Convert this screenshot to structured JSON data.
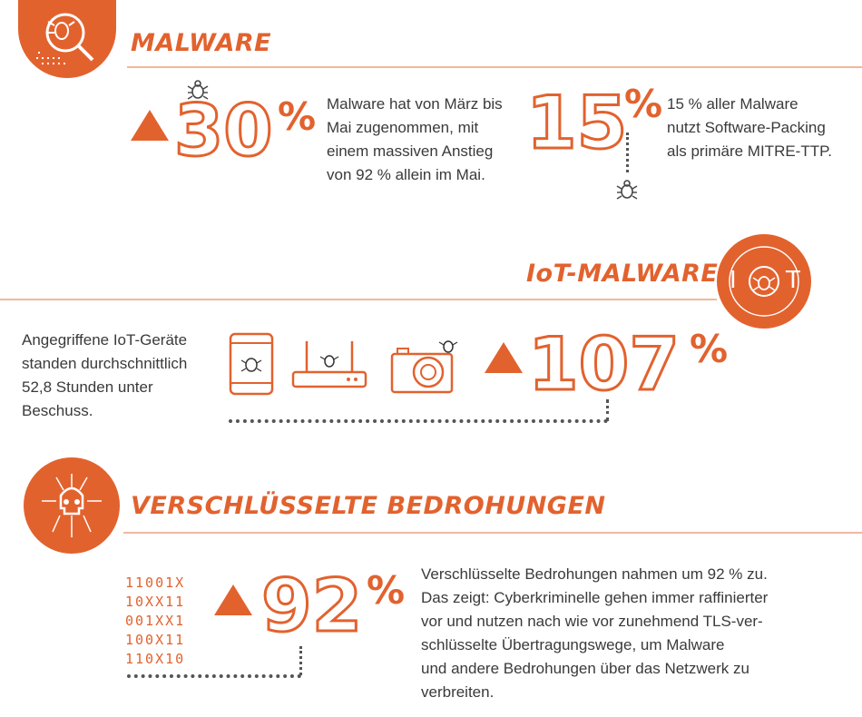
{
  "colors": {
    "accent": "#e2622e",
    "text": "#3a3a3a",
    "rule": "#f0b89e"
  },
  "malware": {
    "heading": "MALWARE",
    "stat1": {
      "number": "30",
      "percent": "%",
      "text_lines": [
        "Malware hat von März bis",
        "Mai zugenommen, mit",
        "einem massiven Anstieg",
        "von 92 % allein im Mai."
      ]
    },
    "stat2": {
      "number": "15",
      "percent": "%",
      "text_lines": [
        "15 % aller Malware",
        "nutzt Software-Packing",
        "als primäre MITRE-TTP."
      ]
    }
  },
  "iot": {
    "heading": "IoT-MALWARE",
    "badge_letters": [
      "I",
      "T"
    ],
    "text_lines": [
      "Angegriffene IoT-Geräte",
      "standen durchschnittlich",
      "52,8 Stunden unter",
      "Beschuss."
    ],
    "number": "107",
    "percent": "%"
  },
  "encrypted": {
    "heading": "VERSCHLÜSSELTE BEDROHUNGEN",
    "binary_lines": [
      "11001X",
      "10XX11",
      "001XX1",
      "100X11",
      "110X10"
    ],
    "number": "92",
    "percent": "%",
    "text_lines": [
      "Verschlüsselte Bedrohungen nahmen um 92 % zu.",
      "Das zeigt: Cyberkriminelle gehen immer raffinierter",
      "vor und nutzen nach wie vor zunehmend TLS-ver-",
      "schlüsselte Übertragungswege, um Malware",
      "und andere Bedrohungen über das Netzwerk zu",
      "verbreiten."
    ]
  }
}
